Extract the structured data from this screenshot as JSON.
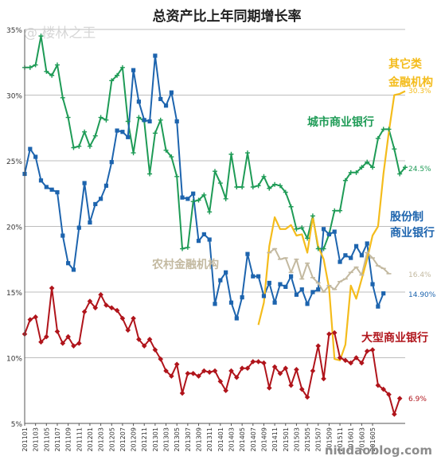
{
  "watermark_top": "@ 楼林之王",
  "watermark_bottom": "niudaoblog.com",
  "colors": {
    "big": "#b0141b",
    "city": "#1e9b56",
    "joint": "#1d64ae",
    "rural": "#c3b9a0",
    "other": "#f4bc1c"
  },
  "chart_data": {
    "type": "line",
    "title": "总资产比上年同期增长率",
    "xlabel": "",
    "ylabel": "",
    "ylim": [
      5,
      35
    ],
    "yticks": [
      "5%",
      "10%",
      "15%",
      "20%",
      "25%",
      "30%",
      "35%"
    ],
    "grid": true,
    "legend": "inline-right",
    "xtick_labels": [
      "201101",
      "201103",
      "201105",
      "201107",
      "201109",
      "201111",
      "201201",
      "201203",
      "201205",
      "201207",
      "201209",
      "201211",
      "201301",
      "201303",
      "201305",
      "201307",
      "201309",
      "201311",
      "201401",
      "201403",
      "201405",
      "201407",
      "201409",
      "201411",
      "201501",
      "201503",
      "201505",
      "201507",
      "201509",
      "201511",
      "201601",
      "201603",
      "201605"
    ],
    "series": [
      {
        "name": "大型商业银行",
        "end_label": "6.9%",
        "marker": "diamond",
        "start_index": 0,
        "values": [
          11.8,
          12.9,
          13.1,
          11.2,
          11.6,
          15.3,
          12.0,
          11.1,
          11.6,
          10.9,
          11.1,
          13.5,
          14.3,
          13.8,
          14.8,
          14.0,
          13.8,
          13.6,
          13.0,
          12.1,
          13.0,
          11.4,
          10.9,
          11.4,
          10.6,
          9.9,
          9.0,
          8.6,
          9.5,
          7.3,
          8.8,
          8.8,
          8.6,
          9.0,
          8.9,
          9.0,
          8.2,
          7.5,
          9.0,
          8.5,
          9.2,
          9.2,
          9.7,
          9.7,
          9.6,
          7.7,
          9.3,
          8.8,
          9.2,
          7.9,
          9.1,
          7.6,
          7.0,
          9.0,
          10.9,
          8.4,
          11.8,
          11.9,
          10.0,
          9.8,
          9.6,
          10.0,
          9.6,
          10.5,
          10.6,
          7.9,
          7.6,
          7.2,
          5.7,
          6.9
        ]
      },
      {
        "name": "城市商业银行",
        "end_label": "24.5%",
        "marker": "plus",
        "start_index": 0,
        "values": [
          32.1,
          32.1,
          32.3,
          34.5,
          31.8,
          31.5,
          32.3,
          29.8,
          28.3,
          26.0,
          26.1,
          27.2,
          26.1,
          26.9,
          28.3,
          28.1,
          31.1,
          31.5,
          32.1,
          28.0,
          25.6,
          28.3,
          28.0,
          24.0,
          27.1,
          28.1,
          25.8,
          25.3,
          23.8,
          18.3,
          18.4,
          21.9,
          22.0,
          22.4,
          21.1,
          24.2,
          23.3,
          22.1,
          25.5,
          23.0,
          23.0,
          25.6,
          23.0,
          23.1,
          23.8,
          22.9,
          23.2,
          23.1,
          22.6,
          21.5,
          19.8,
          19.9,
          19.1,
          20.8,
          18.3,
          18.3,
          19.4,
          21.2,
          21.2,
          23.5,
          24.1,
          24.1,
          24.5,
          24.9,
          24.5,
          26.7,
          27.4,
          27.4,
          25.9,
          24.0,
          24.5
        ]
      },
      {
        "name": "股份制商业银行",
        "end_label": "14.90%",
        "marker": "square",
        "start_index": 0,
        "values": [
          24.0,
          25.9,
          25.3,
          23.5,
          23.0,
          22.8,
          22.6,
          19.3,
          17.2,
          16.7,
          19.9,
          23.3,
          20.3,
          21.7,
          22.1,
          23.1,
          24.9,
          27.3,
          27.2,
          26.8,
          31.9,
          29.5,
          28.1,
          28.0,
          33.0,
          29.7,
          29.2,
          30.2,
          28.0,
          22.2,
          22.1,
          22.5,
          18.9,
          19.4,
          19.0,
          14.1,
          15.9,
          16.5,
          14.2,
          13.0,
          14.6,
          17.9,
          16.2,
          16.2,
          14.7,
          15.7,
          14.2,
          15.6,
          15.4,
          16.2,
          14.8,
          15.2,
          14.1,
          15.0,
          15.2,
          19.8,
          19.4,
          19.6,
          17.3,
          17.8,
          17.6,
          18.5,
          17.8,
          18.7,
          15.6,
          13.9,
          14.9
        ]
      },
      {
        "name": "农村金融机构",
        "end_label": "16.4%",
        "marker": "dash",
        "start_index": 45,
        "values": [
          18.0,
          18.3,
          17.5,
          17.6,
          16.5,
          17.5,
          16.0,
          17.2,
          16.1,
          15.7,
          15.0,
          15.5,
          15.2,
          15.8,
          16.0,
          16.5,
          16.9,
          16.3,
          18.0,
          17.6,
          17.0,
          16.8,
          16.4
        ]
      },
      {
        "name": "其它类金融机构",
        "end_label": "30.3%",
        "marker": "none",
        "start_index": 43,
        "values": [
          12.5,
          14.2,
          18.5,
          20.7,
          19.8,
          19.8,
          20.1,
          19.3,
          19.4,
          18.0,
          20.7,
          18.5,
          17.5,
          15.3,
          9.9,
          9.8,
          11.0,
          15.5,
          14.5,
          16.0,
          17.5,
          19.3,
          20.0,
          24.0,
          27.2,
          30.0,
          30.1,
          30.3
        ]
      }
    ]
  }
}
